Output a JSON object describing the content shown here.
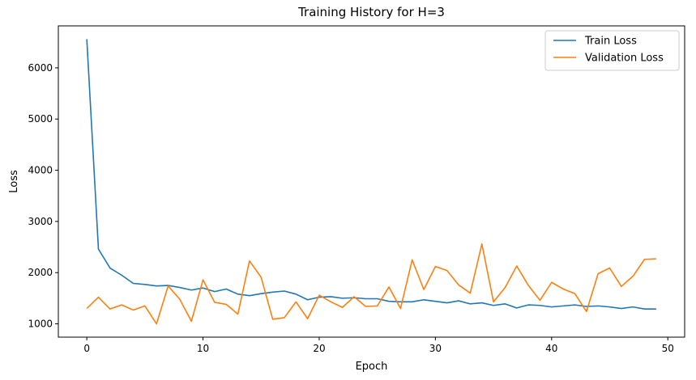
{
  "chart_data": {
    "type": "line",
    "title": "Training History for H=3",
    "xlabel": "Epoch",
    "ylabel": "Loss",
    "xlim": [
      -2.45,
      51.45
    ],
    "ylim": [
      740,
      6820
    ],
    "xticks": [
      0,
      10,
      20,
      30,
      40,
      50
    ],
    "yticks": [
      1000,
      2000,
      3000,
      4000,
      5000,
      6000
    ],
    "grid": false,
    "legend_position": "top-right",
    "x": [
      0,
      1,
      2,
      3,
      4,
      5,
      6,
      7,
      8,
      9,
      10,
      11,
      12,
      13,
      14,
      15,
      16,
      17,
      18,
      19,
      20,
      21,
      22,
      23,
      24,
      25,
      26,
      27,
      28,
      29,
      30,
      31,
      32,
      33,
      34,
      35,
      36,
      37,
      38,
      39,
      40,
      41,
      42,
      43,
      44,
      45,
      46,
      47,
      48,
      49
    ],
    "series": [
      {
        "name": "Train Loss",
        "color": "#1f77b4",
        "values": [
          6560,
          2460,
          2090,
          1950,
          1790,
          1770,
          1740,
          1750,
          1710,
          1660,
          1700,
          1630,
          1680,
          1580,
          1550,
          1590,
          1620,
          1640,
          1580,
          1470,
          1520,
          1530,
          1500,
          1510,
          1490,
          1490,
          1440,
          1430,
          1430,
          1470,
          1440,
          1410,
          1450,
          1390,
          1410,
          1360,
          1390,
          1310,
          1370,
          1360,
          1330,
          1350,
          1370,
          1340,
          1350,
          1330,
          1300,
          1330,
          1290,
          1290
        ]
      },
      {
        "name": "Validation Loss",
        "color": "#ff7f0e",
        "values": [
          1300,
          1520,
          1290,
          1370,
          1270,
          1350,
          1000,
          1740,
          1480,
          1050,
          1860,
          1420,
          1380,
          1190,
          2230,
          1910,
          1090,
          1120,
          1430,
          1100,
          1560,
          1430,
          1320,
          1530,
          1340,
          1350,
          1720,
          1300,
          2250,
          1670,
          2120,
          2040,
          1760,
          1600,
          2560,
          1430,
          1710,
          2130,
          1750,
          1460,
          1810,
          1680,
          1590,
          1240,
          1980,
          2090,
          1730,
          1930,
          2260,
          2270
        ]
      }
    ]
  }
}
